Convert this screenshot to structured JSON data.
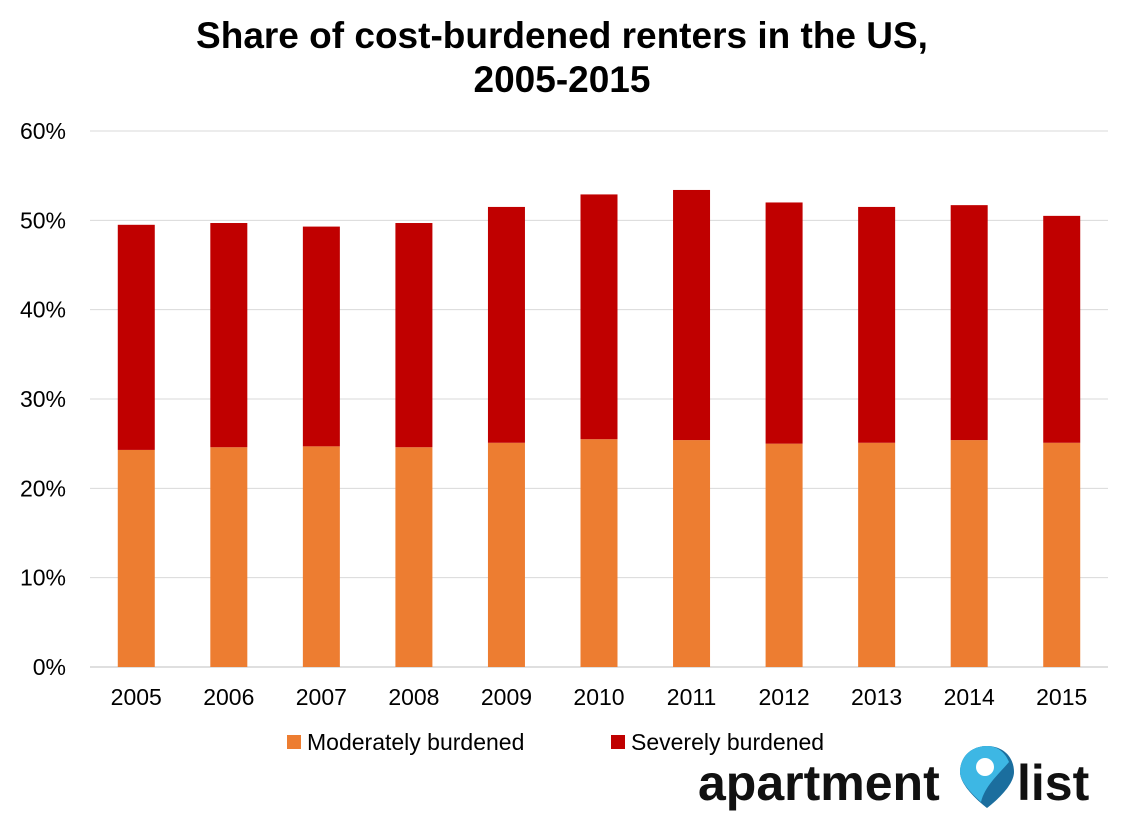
{
  "chart_data": {
    "type": "bar",
    "stacked": true,
    "title": "Share of cost-burdened renters in the US,",
    "subtitle": "2005-2015",
    "categories": [
      "2005",
      "2006",
      "2007",
      "2008",
      "2009",
      "2010",
      "2011",
      "2012",
      "2013",
      "2014",
      "2015"
    ],
    "series": [
      {
        "name": "Moderately burdened",
        "color": "#ED7D31",
        "values": [
          24.3,
          24.6,
          24.7,
          24.6,
          25.1,
          25.5,
          25.4,
          25.0,
          25.1,
          25.4,
          25.1
        ]
      },
      {
        "name": "Severely burdened",
        "color": "#C00000",
        "values": [
          25.2,
          25.1,
          24.6,
          25.1,
          26.4,
          27.4,
          28.0,
          27.0,
          26.4,
          26.3,
          25.4
        ]
      }
    ],
    "ylim": [
      0,
      60
    ],
    "yticks": [
      "0%",
      "10%",
      "20%",
      "30%",
      "40%",
      "50%",
      "60%"
    ],
    "grid": true,
    "legend_position": "bottom"
  },
  "logo": {
    "text_left": "apartment",
    "text_right": "list",
    "icon": "map-pin-icon",
    "colors": {
      "pin_dark": "#1B6E9E",
      "pin_light": "#3DB7E4"
    }
  }
}
